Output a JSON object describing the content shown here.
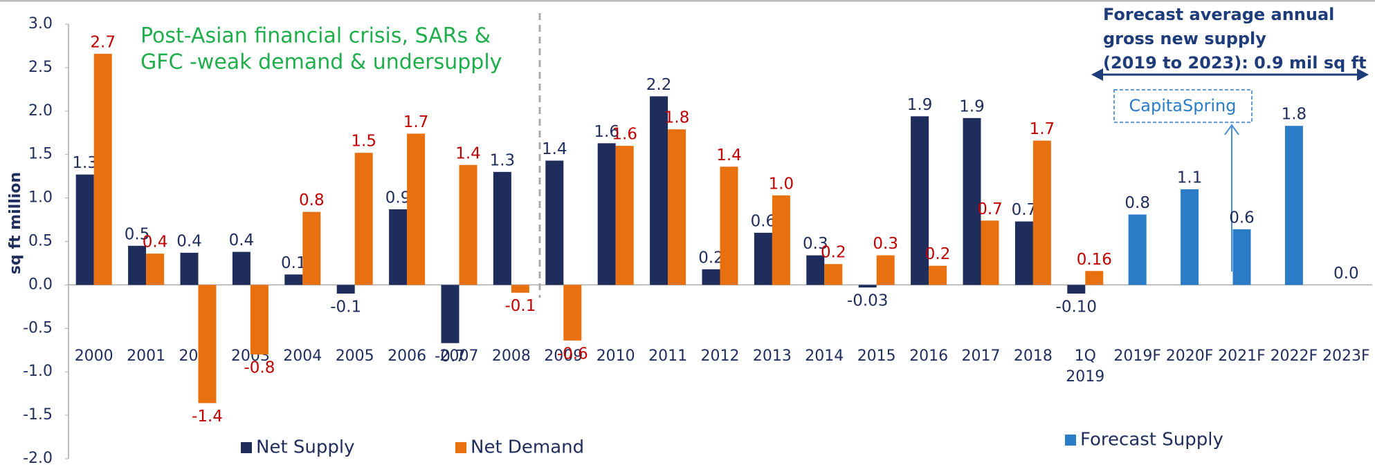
{
  "chart_data": {
    "type": "bar",
    "y_label": "sq ft million",
    "categories": [
      "2000",
      "2001",
      "2002",
      "2003",
      "2004",
      "2005",
      "2006",
      "2007",
      "2008",
      "2009",
      "2010",
      "2011",
      "2012",
      "2013",
      "2014",
      "2015",
      "2016",
      "2017",
      "2018",
      "1Q 2019",
      "2019F",
      "2020F",
      "2021F",
      "2022F",
      "2023F"
    ],
    "series": [
      {
        "name": "Net Supply",
        "color": "#1f2d5c",
        "label_color": "#1f2d5c",
        "values": [
          1.27,
          0.45,
          0.37,
          0.38,
          0.12,
          -0.1,
          0.87,
          -0.67,
          1.3,
          1.43,
          1.63,
          2.17,
          0.18,
          0.6,
          0.34,
          -0.03,
          1.94,
          1.92,
          0.73,
          -0.1,
          null,
          null,
          null,
          null,
          null
        ],
        "value_labels": [
          "1.3",
          "0.5",
          "0.4",
          "0.4",
          "0.1",
          "-0.1",
          "0.9",
          "-0.7",
          "1.3",
          "1.4",
          "1.6",
          "2.2",
          "0.2",
          "0.6",
          "0.3",
          "-0.03",
          "1.9",
          "1.9",
          "0.7",
          "-0.10",
          null,
          null,
          null,
          null,
          null
        ]
      },
      {
        "name": "Net Demand",
        "color": "#e8700f",
        "label_color": "#c00000",
        "values": [
          2.66,
          0.36,
          -1.36,
          -0.8,
          0.84,
          1.52,
          1.74,
          1.38,
          -0.09,
          -0.64,
          1.6,
          1.79,
          1.36,
          1.03,
          0.24,
          0.34,
          0.22,
          0.74,
          1.66,
          0.16,
          null,
          null,
          null,
          null,
          null
        ],
        "value_labels": [
          "2.7",
          "0.4",
          "-1.4",
          "-0.8",
          "0.8",
          "1.5",
          "1.7",
          "1.4",
          "-0.1",
          "-0.6",
          "1.6",
          "1.8",
          "1.4",
          "1.0",
          "0.2",
          "0.3",
          "0.2",
          "0.7",
          "1.7",
          "0.16",
          null,
          null,
          null,
          null,
          null
        ]
      },
      {
        "name": "Forecast Supply",
        "color": "#2a7cc7",
        "label_color": "#1f2d5c",
        "values": [
          null,
          null,
          null,
          null,
          null,
          null,
          null,
          null,
          null,
          null,
          null,
          null,
          null,
          null,
          null,
          null,
          null,
          null,
          null,
          null,
          0.81,
          1.1,
          0.64,
          1.83,
          0
        ],
        "value_labels": [
          null,
          null,
          null,
          null,
          null,
          null,
          null,
          null,
          null,
          null,
          null,
          null,
          null,
          null,
          null,
          null,
          null,
          null,
          null,
          null,
          "0.8",
          "1.1",
          "0.6",
          "1.8",
          "0.0"
        ]
      }
    ],
    "ylim": [
      -2,
      3
    ],
    "yticks": [
      {
        "value": -2,
        "label": "-2.0"
      },
      -1.5,
      {
        "value": -1,
        "label": "-1.0"
      },
      -0.5,
      {
        "value": 0,
        "label": "0.0"
      },
      0.5,
      {
        "value": 1,
        "label": "1.0"
      },
      1.5,
      {
        "value": 2,
        "label": "2.0"
      },
      2.5,
      {
        "value": 3,
        "label": "3.0"
      }
    ],
    "annotations": [
      {
        "lines": [
          "Post-Asian financial crisis, SARs &",
          "GFC -weak demand & undersupply"
        ]
      },
      {
        "lines": [
          "Forecast  average annual",
          "gross new supply",
          "(2019 to 2023): 0.9 mil sq ft"
        ]
      },
      {
        "lines": [
          "CapitaSpring"
        ]
      }
    ]
  }
}
